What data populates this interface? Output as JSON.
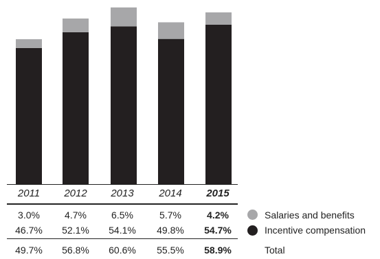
{
  "chart_data": {
    "type": "bar",
    "stacked": true,
    "categories": [
      "2011",
      "2012",
      "2013",
      "2014",
      "2015"
    ],
    "series": [
      {
        "name": "Incentive compensation",
        "color": "#231f20",
        "values": [
          46.7,
          52.1,
          54.1,
          49.8,
          54.7
        ]
      },
      {
        "name": "Salaries and benefits",
        "color": "#a7a7a9",
        "values": [
          3.0,
          4.7,
          6.5,
          5.7,
          4.2
        ]
      }
    ],
    "ylim": [
      0,
      61.5
    ],
    "grid": false,
    "legend": "right"
  },
  "table": {
    "salaries": [
      "3.0%",
      "4.7%",
      "6.5%",
      "5.7%",
      "4.2%"
    ],
    "incentive": [
      "46.7%",
      "52.1%",
      "54.1%",
      "49.8%",
      "54.7%"
    ],
    "total": [
      "49.7%",
      "56.8%",
      "60.6%",
      "55.5%",
      "58.9%"
    ]
  },
  "legend": {
    "salaries_label": "Salaries and benefits",
    "incentive_label": "Incentive compensation",
    "total_label": "Total"
  }
}
